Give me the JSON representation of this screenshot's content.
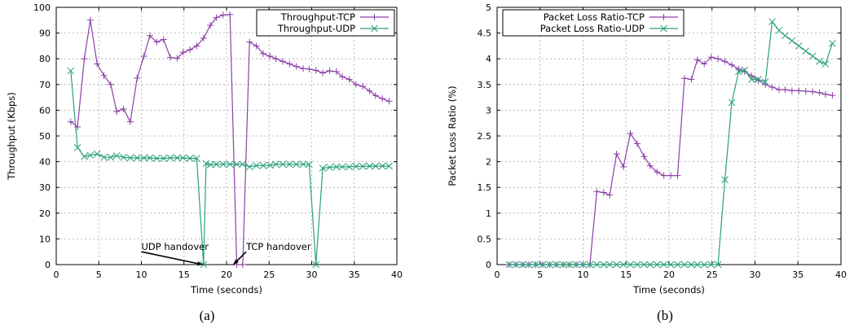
{
  "captions": {
    "a": "(a)",
    "b": "(b)"
  },
  "chart_data": [
    {
      "type": "line",
      "title": "",
      "xlabel": "Time (seconds)",
      "ylabel": "Throughput (Kbps)",
      "xlim": [
        0,
        40
      ],
      "ylim": [
        0,
        100
      ],
      "xticks": [
        0,
        5,
        10,
        15,
        20,
        25,
        30,
        35,
        40
      ],
      "yticks": [
        0,
        10,
        20,
        30,
        40,
        50,
        60,
        70,
        80,
        90,
        100
      ],
      "grid": true,
      "legend_position": "top-right",
      "series": [
        {
          "name": "Throughput-TCP",
          "color": "#8b3fa8",
          "marker": "plus",
          "points": [
            [
              1.7,
              55.5
            ],
            [
              2.5,
              53.5
            ],
            [
              3.3,
              80
            ],
            [
              4.0,
              95
            ],
            [
              4.8,
              78
            ],
            [
              5.6,
              73.5
            ],
            [
              6.4,
              70
            ],
            [
              7.1,
              59.5
            ],
            [
              7.9,
              60.5
            ],
            [
              8.7,
              55.5
            ],
            [
              9.5,
              72.5
            ],
            [
              10.3,
              81
            ],
            [
              11.0,
              89
            ],
            [
              11.8,
              86.5
            ],
            [
              12.6,
              87.5
            ],
            [
              13.4,
              80.5
            ],
            [
              14.2,
              80.2
            ],
            [
              14.9,
              82.5
            ],
            [
              15.7,
              83.5
            ],
            [
              16.5,
              85
            ],
            [
              17.3,
              88
            ],
            [
              18.1,
              93
            ],
            [
              18.8,
              96
            ],
            [
              19.6,
              97
            ],
            [
              20.4,
              97.2
            ],
            [
              21.2,
              0
            ],
            [
              21.9,
              0
            ],
            [
              22.7,
              86.5
            ],
            [
              23.5,
              85
            ],
            [
              24.3,
              82
            ],
            [
              25.1,
              81
            ],
            [
              25.8,
              80
            ],
            [
              26.6,
              79
            ],
            [
              27.4,
              78
            ],
            [
              28.2,
              77
            ],
            [
              29.0,
              76.2
            ],
            [
              29.7,
              76
            ],
            [
              30.5,
              75.5
            ],
            [
              31.3,
              74.5
            ],
            [
              32.1,
              75.3
            ],
            [
              32.9,
              75
            ],
            [
              33.6,
              73
            ],
            [
              34.4,
              72
            ],
            [
              35.2,
              70
            ],
            [
              36.0,
              69.3
            ],
            [
              36.8,
              67.5
            ],
            [
              37.5,
              65.7
            ],
            [
              38.3,
              64.5
            ],
            [
              39.1,
              63.5
            ]
          ]
        },
        {
          "name": "Throughput-UDP",
          "color": "#2aa07a",
          "marker": "x",
          "points": [
            [
              1.7,
              75.3
            ],
            [
              2.5,
              45.5
            ],
            [
              3.3,
              42
            ],
            [
              4.0,
              42.5
            ],
            [
              4.8,
              43
            ],
            [
              5.6,
              41.7
            ],
            [
              6.4,
              41.7
            ],
            [
              7.1,
              42.3
            ],
            [
              7.9,
              41.7
            ],
            [
              8.7,
              41.5
            ],
            [
              9.5,
              41.5
            ],
            [
              10.3,
              41.5
            ],
            [
              11.0,
              41.5
            ],
            [
              11.8,
              41.3
            ],
            [
              12.6,
              41.3
            ],
            [
              13.4,
              41.5
            ],
            [
              14.2,
              41.5
            ],
            [
              14.9,
              41.5
            ],
            [
              15.7,
              41.3
            ],
            [
              16.5,
              41.3
            ],
            [
              17.3,
              0
            ],
            [
              17.6,
              39.3
            ],
            [
              18.1,
              38.8
            ],
            [
              18.8,
              39
            ],
            [
              19.6,
              39
            ],
            [
              20.4,
              39
            ],
            [
              21.2,
              39
            ],
            [
              21.9,
              39
            ],
            [
              22.7,
              38
            ],
            [
              23.5,
              38.5
            ],
            [
              24.3,
              38.5
            ],
            [
              25.1,
              38.6
            ],
            [
              25.8,
              39
            ],
            [
              26.6,
              39
            ],
            [
              27.4,
              39
            ],
            [
              28.2,
              39
            ],
            [
              29.0,
              39
            ],
            [
              29.7,
              39
            ],
            [
              30.5,
              0
            ],
            [
              31.3,
              37.5
            ],
            [
              32.1,
              37.8
            ],
            [
              32.9,
              38
            ],
            [
              33.6,
              38
            ],
            [
              34.4,
              38
            ],
            [
              35.2,
              38.2
            ],
            [
              36.0,
              38.2
            ],
            [
              36.8,
              38.3
            ],
            [
              37.5,
              38.3
            ],
            [
              38.3,
              38.3
            ],
            [
              39.1,
              38.3
            ]
          ]
        }
      ],
      "annotations": [
        {
          "text": "UDP handover",
          "text_at": [
            10,
            5
          ],
          "arrow_to": [
            17.2,
            0
          ],
          "anchor": "start"
        },
        {
          "text": "TCP handover",
          "text_at": [
            22.3,
            5
          ],
          "arrow_to": [
            20.8,
            0
          ],
          "anchor": "start"
        }
      ]
    },
    {
      "type": "line",
      "title": "",
      "xlabel": "Time (seconds)",
      "ylabel": "Packet Loss Ratio (%)",
      "xlim": [
        0,
        40
      ],
      "ylim": [
        0,
        5
      ],
      "xticks": [
        0,
        5,
        10,
        15,
        20,
        25,
        30,
        35,
        40
      ],
      "yticks": [
        0,
        0.5,
        1,
        1.5,
        2,
        2.5,
        3,
        3.5,
        4,
        4.5,
        5
      ],
      "grid": true,
      "legend_position": "top-left",
      "series": [
        {
          "name": "Packet Loss Ratio-TCP",
          "color": "#8b3fa8",
          "marker": "plus",
          "points": [
            [
              1.4,
              0
            ],
            [
              2.2,
              0
            ],
            [
              3.0,
              0
            ],
            [
              3.7,
              0
            ],
            [
              4.5,
              0
            ],
            [
              5.3,
              0
            ],
            [
              6.1,
              0
            ],
            [
              6.9,
              0
            ],
            [
              7.7,
              0
            ],
            [
              8.4,
              0
            ],
            [
              9.2,
              0
            ],
            [
              10.0,
              0
            ],
            [
              10.8,
              0
            ],
            [
              11.6,
              1.42
            ],
            [
              12.4,
              1.4
            ],
            [
              13.1,
              1.35
            ],
            [
              13.9,
              2.15
            ],
            [
              14.7,
              1.9
            ],
            [
              15.5,
              2.55
            ],
            [
              16.3,
              2.35
            ],
            [
              17.1,
              2.1
            ],
            [
              17.8,
              1.92
            ],
            [
              18.6,
              1.8
            ],
            [
              19.4,
              1.73
            ],
            [
              20.2,
              1.73
            ],
            [
              21.0,
              1.73
            ],
            [
              21.8,
              3.62
            ],
            [
              22.6,
              3.6
            ],
            [
              23.3,
              3.98
            ],
            [
              24.1,
              3.9
            ],
            [
              24.9,
              4.03
            ],
            [
              25.7,
              4.0
            ],
            [
              26.5,
              3.95
            ],
            [
              27.3,
              3.88
            ],
            [
              28.1,
              3.8
            ],
            [
              28.8,
              3.75
            ],
            [
              29.6,
              3.67
            ],
            [
              30.4,
              3.58
            ],
            [
              31.2,
              3.5
            ],
            [
              32.0,
              3.45
            ],
            [
              32.8,
              3.4
            ],
            [
              33.5,
              3.4
            ],
            [
              34.3,
              3.38
            ],
            [
              35.1,
              3.38
            ],
            [
              35.9,
              3.37
            ],
            [
              36.7,
              3.36
            ],
            [
              37.5,
              3.34
            ],
            [
              38.2,
              3.31
            ],
            [
              39.0,
              3.29
            ]
          ]
        },
        {
          "name": "Packet Loss Ratio-UDP",
          "color": "#2aa07a",
          "marker": "x",
          "points": [
            [
              1.4,
              0
            ],
            [
              2.2,
              0
            ],
            [
              3.0,
              0
            ],
            [
              3.7,
              0
            ],
            [
              4.5,
              0
            ],
            [
              5.3,
              0
            ],
            [
              6.1,
              0
            ],
            [
              6.9,
              0
            ],
            [
              7.7,
              0
            ],
            [
              8.4,
              0
            ],
            [
              9.2,
              0
            ],
            [
              10.0,
              0
            ],
            [
              10.8,
              0
            ],
            [
              11.6,
              0
            ],
            [
              12.4,
              0
            ],
            [
              13.1,
              0
            ],
            [
              13.9,
              0
            ],
            [
              14.7,
              0
            ],
            [
              15.5,
              0
            ],
            [
              16.3,
              0
            ],
            [
              17.1,
              0
            ],
            [
              17.8,
              0
            ],
            [
              18.6,
              0
            ],
            [
              19.4,
              0
            ],
            [
              20.2,
              0
            ],
            [
              21.0,
              0
            ],
            [
              21.8,
              0
            ],
            [
              22.6,
              0
            ],
            [
              23.3,
              0
            ],
            [
              24.1,
              0
            ],
            [
              24.9,
              0
            ],
            [
              25.7,
              0
            ],
            [
              26.5,
              1.65
            ],
            [
              27.3,
              3.15
            ],
            [
              28.1,
              3.75
            ],
            [
              28.8,
              3.78
            ],
            [
              29.6,
              3.6
            ],
            [
              30.4,
              3.6
            ],
            [
              31.2,
              3.55
            ],
            [
              32.0,
              4.72
            ],
            [
              32.8,
              4.55
            ],
            [
              33.5,
              4.45
            ],
            [
              34.3,
              4.35
            ],
            [
              35.1,
              4.25
            ],
            [
              35.9,
              4.15
            ],
            [
              36.7,
              4.05
            ],
            [
              37.5,
              3.95
            ],
            [
              38.2,
              3.9
            ],
            [
              39.0,
              4.3
            ]
          ]
        }
      ]
    }
  ]
}
